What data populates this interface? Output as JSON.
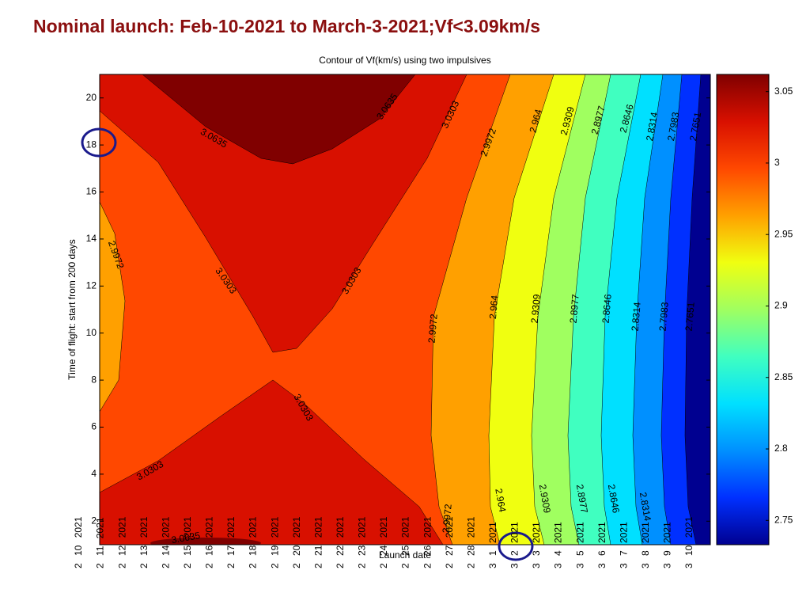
{
  "chart_data": {
    "type": "contour",
    "page_title": "Nominal launch: Feb-10-2021 to March-3-2021;Vf<3.09km/s",
    "title": "Contour of Vf(km/s) using two impulsives",
    "x_label": "Launch date",
    "y_label": "Time of flight: start from 200 days",
    "categories": [
      "2 10 2021",
      "2 11 2021",
      "2 12 2021",
      "2 13 2021",
      "2 14 2021",
      "2 15 2021",
      "2 16 2021",
      "2 17 2021",
      "2 18 2021",
      "2 19 2021",
      "2 20 2021",
      "2 21 2021",
      "2 22 2021",
      "2 23 2021",
      "2 24 2021",
      "2 25 2021",
      "2 26 2021",
      "2 27 2021",
      "2 28 2021",
      "3 1 2021",
      "3 2 2021",
      "3 3 2021",
      "3 4 2021",
      "3 5 2021",
      "3 6 2021",
      "3 7 2021",
      "3 8 2021",
      "3 9 2021",
      "3 10 2021"
    ],
    "ylim": [
      1,
      21
    ],
    "yticks": [
      2,
      4,
      6,
      8,
      10,
      12,
      14,
      16,
      18,
      20
    ],
    "levels": [
      2.7651,
      2.7983,
      2.8314,
      2.8646,
      2.8977,
      2.9309,
      2.964,
      2.9972,
      3.0303,
      3.0635
    ],
    "band_colors": [
      "#000090",
      "#0030ff",
      "#0090ff",
      "#00e0ff",
      "#40ffc0",
      "#a0ff60",
      "#f0ff10",
      "#ffa000",
      "#ff4800",
      "#d81000",
      "#800000"
    ],
    "clim": [
      2.733,
      3.062
    ],
    "cticks": [
      2.75,
      2.8,
      2.85,
      2.9,
      2.95,
      3,
      3.05
    ]
  }
}
